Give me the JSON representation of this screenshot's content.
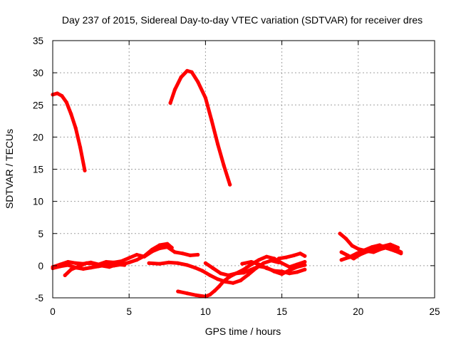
{
  "chart_data": {
    "type": "line",
    "title": "Day 237 of 2015, Sidereal Day-to-day VTEC variation (SDTVAR) for receiver dres",
    "xlabel": "GPS time / hours",
    "ylabel": "SDTVAR / TECUs",
    "xlim": [
      0,
      25
    ],
    "ylim": [
      -5,
      35
    ],
    "xticks": [
      "0",
      "5",
      "10",
      "15",
      "20",
      "25"
    ],
    "yticks": [
      "-5",
      "0",
      "5",
      "10",
      "15",
      "20",
      "25",
      "30",
      "35"
    ],
    "grid": true,
    "color": "#ff0000",
    "series": [
      {
        "points": [
          [
            0,
            26.6
          ],
          [
            0.3,
            26.8
          ],
          [
            0.6,
            26.4
          ],
          [
            0.9,
            25.4
          ],
          [
            1.2,
            23.6
          ],
          [
            1.5,
            21.4
          ],
          [
            1.8,
            18.4
          ],
          [
            2.1,
            14.8
          ]
        ]
      },
      {
        "points": [
          [
            7.7,
            25.3
          ],
          [
            8.0,
            27.4
          ],
          [
            8.4,
            29.3
          ],
          [
            8.8,
            30.3
          ],
          [
            9.1,
            30.1
          ],
          [
            9.5,
            28.6
          ],
          [
            10.0,
            26.1
          ],
          [
            10.4,
            22.6
          ],
          [
            10.8,
            18.9
          ],
          [
            11.2,
            15.6
          ],
          [
            11.6,
            12.6
          ]
        ]
      },
      {
        "points": [
          [
            0,
            -0.2
          ],
          [
            0.5,
            0.2
          ],
          [
            1.0,
            0.6
          ],
          [
            1.5,
            0.4
          ],
          [
            2.0,
            0.3
          ],
          [
            2.5,
            0.5
          ],
          [
            3.0,
            0.2
          ],
          [
            3.5,
            0.6
          ],
          [
            4.0,
            0.5
          ],
          [
            4.5,
            0.7
          ],
          [
            5.0,
            1.2
          ],
          [
            5.5,
            1.7
          ],
          [
            6.0,
            1.4
          ],
          [
            6.5,
            2.2
          ],
          [
            7.0,
            2.7
          ],
          [
            7.5,
            2.9
          ],
          [
            8.0,
            2.1
          ],
          [
            8.5,
            1.9
          ],
          [
            9.0,
            1.6
          ],
          [
            9.5,
            1.7
          ]
        ]
      },
      {
        "points": [
          [
            0,
            -0.4
          ],
          [
            0.5,
            -0.1
          ],
          [
            1.0,
            0.1
          ],
          [
            1.5,
            -0.3
          ],
          [
            2.0,
            -0.5
          ],
          [
            2.5,
            -0.3
          ],
          [
            3.0,
            -0.1
          ],
          [
            3.5,
            0.1
          ],
          [
            4.0,
            0.0
          ],
          [
            4.5,
            0.2
          ],
          [
            5.0,
            0.5
          ],
          [
            5.5,
            0.9
          ],
          [
            6.0,
            1.5
          ],
          [
            6.5,
            2.5
          ],
          [
            7.0,
            3.2
          ],
          [
            7.5,
            3.4
          ],
          [
            7.8,
            2.8
          ]
        ]
      },
      {
        "points": [
          [
            0.8,
            -1.5
          ],
          [
            1.2,
            -0.6
          ],
          [
            1.7,
            -0.1
          ],
          [
            2.2,
            0.4
          ],
          [
            2.7,
            0.3
          ],
          [
            3.2,
            0.0
          ],
          [
            3.7,
            -0.2
          ],
          [
            4.2,
            0.2
          ],
          [
            4.7,
            0.1
          ]
        ]
      },
      {
        "points": [
          [
            6.3,
            0.4
          ],
          [
            7.0,
            0.3
          ],
          [
            7.6,
            0.5
          ],
          [
            8.2,
            0.4
          ],
          [
            8.8,
            0.1
          ],
          [
            9.3,
            -0.3
          ],
          [
            9.8,
            -0.8
          ],
          [
            10.3,
            -1.5
          ],
          [
            10.8,
            -2.1
          ],
          [
            11.3,
            -2.5
          ],
          [
            11.8,
            -2.7
          ],
          [
            12.3,
            -2.3
          ],
          [
            12.8,
            -1.4
          ],
          [
            13.3,
            -0.4
          ],
          [
            13.8,
            0.4
          ],
          [
            14.3,
            0.8
          ],
          [
            14.8,
            0.5
          ]
        ]
      },
      {
        "points": [
          [
            8.2,
            -4.0
          ],
          [
            8.8,
            -4.3
          ],
          [
            9.4,
            -4.6
          ],
          [
            10.0,
            -4.8
          ],
          [
            10.3,
            -4.5
          ],
          [
            10.6,
            -3.9
          ],
          [
            10.9,
            -3.2
          ],
          [
            11.2,
            -2.4
          ],
          [
            11.6,
            -1.7
          ],
          [
            12.0,
            -1.2
          ],
          [
            12.5,
            -0.6
          ],
          [
            13.0,
            0.2
          ],
          [
            13.5,
            0.9
          ],
          [
            14.0,
            1.4
          ],
          [
            14.5,
            1.1
          ],
          [
            15.0,
            0.4
          ],
          [
            15.5,
            -0.2
          ],
          [
            16.0,
            0.2
          ],
          [
            16.5,
            0.6
          ]
        ]
      },
      {
        "points": [
          [
            10.0,
            0.4
          ],
          [
            10.5,
            -0.4
          ],
          [
            11.0,
            -1.2
          ],
          [
            11.5,
            -1.5
          ],
          [
            12.0,
            -1.2
          ],
          [
            12.5,
            -1.1
          ],
          [
            13.0,
            -0.6
          ],
          [
            13.5,
            -0.1
          ],
          [
            14.0,
            -0.3
          ],
          [
            14.5,
            -0.9
          ],
          [
            15.0,
            -1.3
          ],
          [
            15.5,
            -0.7
          ],
          [
            16.0,
            -0.2
          ],
          [
            16.5,
            0.1
          ]
        ]
      },
      {
        "points": [
          [
            12.4,
            0.3
          ],
          [
            13.0,
            0.6
          ],
          [
            13.5,
            0.2
          ],
          [
            14.0,
            -0.4
          ],
          [
            14.5,
            -0.8
          ],
          [
            15.0,
            -0.9
          ],
          [
            15.5,
            -1.2
          ],
          [
            16.0,
            -1.0
          ],
          [
            16.5,
            -0.6
          ]
        ]
      },
      {
        "points": [
          [
            14.8,
            1.1
          ],
          [
            15.3,
            1.3
          ],
          [
            15.8,
            1.6
          ],
          [
            16.2,
            1.9
          ],
          [
            16.5,
            1.5
          ]
        ]
      },
      {
        "points": [
          [
            18.8,
            5.0
          ],
          [
            19.2,
            4.2
          ],
          [
            19.6,
            3.1
          ],
          [
            20.0,
            2.6
          ],
          [
            20.5,
            2.3
          ],
          [
            21.0,
            2.1
          ],
          [
            21.5,
            2.6
          ],
          [
            22.0,
            2.9
          ],
          [
            22.5,
            2.5
          ],
          [
            22.8,
            2.1
          ]
        ]
      },
      {
        "points": [
          [
            18.9,
            0.9
          ],
          [
            19.4,
            1.3
          ],
          [
            19.9,
            1.9
          ],
          [
            20.4,
            2.4
          ],
          [
            20.9,
            2.9
          ],
          [
            21.4,
            3.2
          ],
          [
            21.9,
            2.7
          ],
          [
            22.4,
            2.3
          ],
          [
            22.8,
            1.9
          ]
        ]
      },
      {
        "points": [
          [
            18.9,
            2.1
          ],
          [
            19.3,
            1.6
          ],
          [
            19.7,
            1.1
          ],
          [
            20.1,
            1.7
          ],
          [
            20.6,
            2.2
          ],
          [
            21.1,
            2.6
          ],
          [
            21.6,
            3.0
          ],
          [
            22.1,
            3.3
          ],
          [
            22.6,
            2.8
          ]
        ]
      }
    ]
  }
}
